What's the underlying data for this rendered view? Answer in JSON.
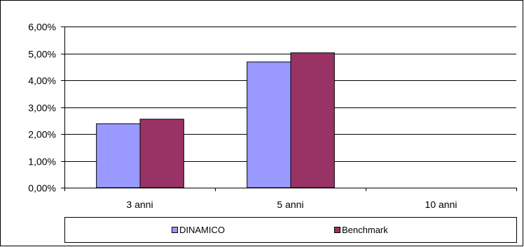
{
  "chart_data": {
    "type": "bar",
    "categories": [
      "3 anni",
      "5 anni",
      "10 anni"
    ],
    "series": [
      {
        "name": "DINAMICO",
        "color": "#9999FF",
        "values": [
          2.38,
          4.68,
          null
        ]
      },
      {
        "name": "Benchmark",
        "color": "#993366",
        "values": [
          2.55,
          5.02,
          null
        ]
      }
    ],
    "ylim": [
      0,
      6
    ],
    "y_ticks": [
      0,
      1,
      2,
      3,
      4,
      5,
      6
    ],
    "y_tick_labels": [
      "0,00%",
      "1,00%",
      "2,00%",
      "3,00%",
      "4,00%",
      "5,00%",
      "6,00%"
    ],
    "grid": true,
    "legend_position": "bottom"
  }
}
